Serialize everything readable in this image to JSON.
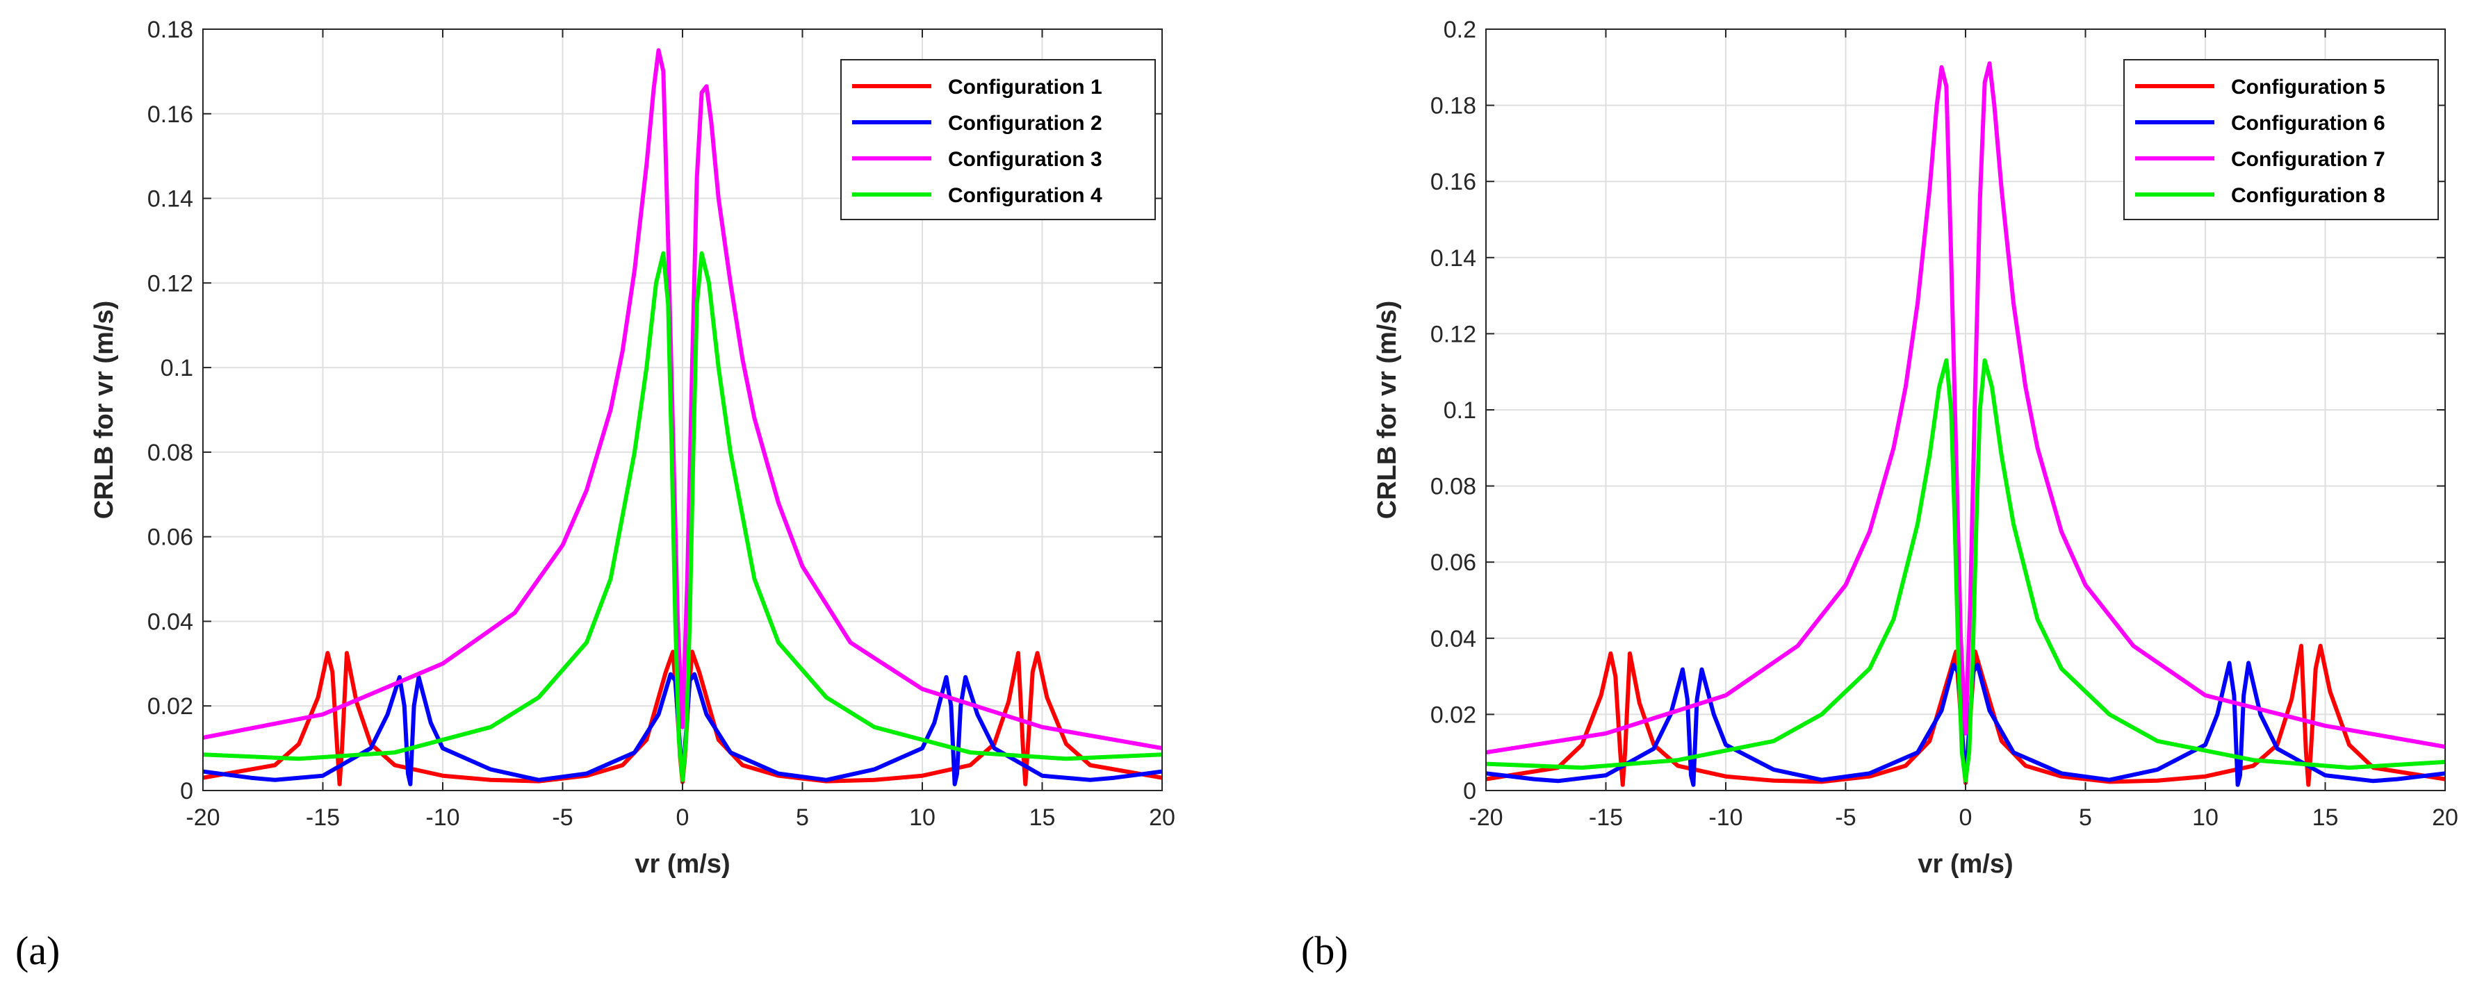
{
  "figure": {
    "panel_labels": [
      "(a)",
      "(b)"
    ]
  },
  "chart_data": [
    {
      "type": "line",
      "panel": "(a)",
      "title": "",
      "xlabel": "vr (m/s)",
      "ylabel": "CRLB for vr (m/s)",
      "xlim": [
        -20,
        20
      ],
      "ylim": [
        0,
        0.18
      ],
      "xticks": [
        -20,
        -15,
        -10,
        -5,
        0,
        5,
        10,
        15,
        20
      ],
      "yticks": [
        0,
        0.02,
        0.04,
        0.06,
        0.08,
        0.1,
        0.12,
        0.14,
        0.16,
        0.18
      ],
      "ytick_labels": [
        "0",
        "0.02",
        "0.04",
        "0.06",
        "0.08",
        "0.1",
        "0.12",
        "0.14",
        "0.16",
        "0.18"
      ],
      "grid": true,
      "legend_position": "top-right",
      "series": [
        {
          "name": "Configuration 1",
          "color": "#ff0000",
          "x": [
            -20,
            -17,
            -16,
            -15.2,
            -14.8,
            -14.6,
            -14.4,
            -14.3,
            -14.2,
            -14.0,
            -13.6,
            -13,
            -12,
            -10,
            -8,
            -6,
            -4,
            -2.5,
            -1.5,
            -0.7,
            -0.4,
            -0.25,
            -0.1,
            0,
            0.1,
            0.25,
            0.4,
            0.7,
            1.5,
            2.5,
            4,
            6,
            8,
            10,
            12,
            13,
            13.6,
            14.0,
            14.2,
            14.3,
            14.4,
            14.6,
            14.8,
            15.2,
            16,
            17,
            20
          ],
          "values": [
            0.003,
            0.006,
            0.011,
            0.022,
            0.0325,
            0.028,
            0.01,
            0.0015,
            0.01,
            0.0325,
            0.021,
            0.011,
            0.006,
            0.0035,
            0.0025,
            0.0022,
            0.0035,
            0.006,
            0.012,
            0.028,
            0.0328,
            0.022,
            0.008,
            0.002,
            0.008,
            0.022,
            0.0328,
            0.028,
            0.012,
            0.006,
            0.0035,
            0.0022,
            0.0025,
            0.0035,
            0.006,
            0.011,
            0.021,
            0.0325,
            0.01,
            0.0015,
            0.01,
            0.028,
            0.0325,
            0.022,
            0.011,
            0.006,
            0.003
          ]
        },
        {
          "name": "Configuration 2",
          "color": "#0000ff",
          "x": [
            -20,
            -18,
            -17,
            -15,
            -13,
            -12.3,
            -11.8,
            -11.6,
            -11.45,
            -11.35,
            -11.2,
            -11.0,
            -10.5,
            -10,
            -8,
            -6,
            -4,
            -2,
            -1,
            -0.5,
            -0.3,
            -0.1,
            0,
            0.1,
            0.3,
            0.5,
            1,
            2,
            4,
            6,
            8,
            10,
            10.5,
            11.0,
            11.2,
            11.35,
            11.45,
            11.6,
            11.8,
            12.3,
            13,
            15,
            17,
            18,
            20
          ],
          "values": [
            0.0045,
            0.003,
            0.0025,
            0.0035,
            0.01,
            0.018,
            0.0268,
            0.02,
            0.004,
            0.0015,
            0.02,
            0.0268,
            0.016,
            0.01,
            0.005,
            0.0025,
            0.004,
            0.009,
            0.018,
            0.0275,
            0.026,
            0.01,
            0.0035,
            0.01,
            0.026,
            0.0275,
            0.018,
            0.009,
            0.004,
            0.0025,
            0.005,
            0.01,
            0.016,
            0.0268,
            0.02,
            0.0015,
            0.004,
            0.02,
            0.0268,
            0.018,
            0.01,
            0.0035,
            0.0025,
            0.003,
            0.0045
          ]
        },
        {
          "name": "Configuration 3",
          "color": "#ff00ff",
          "x": [
            -20,
            -15,
            -10,
            -7,
            -5,
            -4,
            -3,
            -2.5,
            -2,
            -1.5,
            -1.2,
            -1.0,
            -0.8,
            -0.6,
            -0.4,
            -0.2,
            0,
            0.2,
            0.4,
            0.6,
            0.8,
            1.0,
            1.2,
            1.5,
            2,
            2.5,
            3,
            4,
            5,
            7,
            10,
            15,
            20
          ],
          "values": [
            0.0125,
            0.018,
            0.03,
            0.042,
            0.058,
            0.071,
            0.09,
            0.104,
            0.123,
            0.148,
            0.166,
            0.175,
            0.17,
            0.13,
            0.085,
            0.04,
            0.015,
            0.05,
            0.1,
            0.145,
            0.165,
            0.1665,
            0.158,
            0.14,
            0.12,
            0.102,
            0.088,
            0.068,
            0.053,
            0.035,
            0.024,
            0.015,
            0.01
          ]
        },
        {
          "name": "Configuration 4",
          "color": "#00ee00",
          "x": [
            -20,
            -16,
            -12,
            -8,
            -6,
            -4,
            -3,
            -2,
            -1.5,
            -1.1,
            -0.8,
            -0.6,
            -0.45,
            -0.3,
            -0.15,
            0,
            0.15,
            0.3,
            0.45,
            0.6,
            0.8,
            1.1,
            1.5,
            2,
            3,
            4,
            6,
            8,
            12,
            16,
            20
          ],
          "values": [
            0.0085,
            0.0075,
            0.009,
            0.015,
            0.022,
            0.035,
            0.05,
            0.08,
            0.1,
            0.12,
            0.127,
            0.115,
            0.08,
            0.04,
            0.012,
            0.0025,
            0.012,
            0.04,
            0.08,
            0.115,
            0.127,
            0.12,
            0.1,
            0.08,
            0.05,
            0.035,
            0.022,
            0.015,
            0.009,
            0.0075,
            0.0085
          ]
        }
      ]
    },
    {
      "type": "line",
      "panel": "(b)",
      "title": "",
      "xlabel": "vr (m/s)",
      "ylabel": "CRLB for vr (m/s)",
      "xlim": [
        -20,
        20
      ],
      "ylim": [
        0,
        0.2
      ],
      "xticks": [
        -20,
        -15,
        -10,
        -5,
        0,
        5,
        10,
        15,
        20
      ],
      "yticks": [
        0,
        0.02,
        0.04,
        0.06,
        0.08,
        0.1,
        0.12,
        0.14,
        0.16,
        0.18,
        0.2
      ],
      "ytick_labels": [
        "0",
        "0.02",
        "0.04",
        "0.06",
        "0.08",
        "0.1",
        "0.12",
        "0.14",
        "0.16",
        "0.18",
        "0.2"
      ],
      "grid": true,
      "legend_position": "top-right",
      "series": [
        {
          "name": "Configuration 5",
          "color": "#ff0000",
          "x": [
            -20,
            -17,
            -16,
            -15.2,
            -14.8,
            -14.6,
            -14.4,
            -14.3,
            -14.2,
            -14.0,
            -13.6,
            -13,
            -12,
            -10,
            -8,
            -6,
            -4,
            -2.5,
            -1.5,
            -0.7,
            -0.4,
            -0.25,
            -0.1,
            0,
            0.1,
            0.25,
            0.4,
            0.7,
            1.5,
            2.5,
            4,
            6,
            8,
            10,
            12,
            13,
            13.6,
            14.0,
            14.2,
            14.3,
            14.4,
            14.6,
            14.8,
            15.2,
            16,
            17,
            20
          ],
          "values": [
            0.003,
            0.006,
            0.012,
            0.025,
            0.036,
            0.03,
            0.01,
            0.0015,
            0.01,
            0.036,
            0.023,
            0.012,
            0.0065,
            0.0037,
            0.0026,
            0.0023,
            0.0037,
            0.0065,
            0.013,
            0.03,
            0.0365,
            0.024,
            0.009,
            0.002,
            0.009,
            0.024,
            0.0365,
            0.03,
            0.013,
            0.0065,
            0.0037,
            0.0023,
            0.0026,
            0.0037,
            0.0065,
            0.012,
            0.024,
            0.038,
            0.01,
            0.0015,
            0.01,
            0.032,
            0.038,
            0.026,
            0.012,
            0.006,
            0.003
          ]
        },
        {
          "name": "Configuration 6",
          "color": "#0000ff",
          "x": [
            -20,
            -18,
            -17,
            -15,
            -13,
            -12.3,
            -11.8,
            -11.6,
            -11.45,
            -11.35,
            -11.2,
            -11.0,
            -10.5,
            -10,
            -8,
            -6,
            -4,
            -2,
            -1,
            -0.5,
            -0.3,
            -0.1,
            0,
            0.1,
            0.3,
            0.5,
            1,
            2,
            4,
            6,
            8,
            10,
            10.5,
            11.0,
            11.2,
            11.35,
            11.45,
            11.6,
            11.8,
            12.3,
            13,
            15,
            17,
            18,
            20
          ],
          "values": [
            0.0045,
            0.003,
            0.0025,
            0.004,
            0.011,
            0.02,
            0.0318,
            0.024,
            0.004,
            0.0015,
            0.024,
            0.0318,
            0.02,
            0.012,
            0.0055,
            0.0028,
            0.0045,
            0.01,
            0.021,
            0.033,
            0.031,
            0.011,
            0.0035,
            0.011,
            0.031,
            0.033,
            0.021,
            0.01,
            0.0045,
            0.0028,
            0.0055,
            0.012,
            0.02,
            0.0335,
            0.025,
            0.0015,
            0.004,
            0.025,
            0.0335,
            0.02,
            0.011,
            0.004,
            0.0025,
            0.003,
            0.0045
          ]
        },
        {
          "name": "Configuration 7",
          "color": "#ff00ff",
          "x": [
            -20,
            -15,
            -10,
            -7,
            -5,
            -4,
            -3,
            -2.5,
            -2,
            -1.5,
            -1.2,
            -1.0,
            -0.8,
            -0.6,
            -0.4,
            -0.2,
            0,
            0.2,
            0.4,
            0.6,
            0.8,
            1.0,
            1.2,
            1.5,
            2,
            2.5,
            3,
            4,
            5,
            7,
            10,
            15,
            20
          ],
          "values": [
            0.01,
            0.015,
            0.025,
            0.038,
            0.054,
            0.068,
            0.09,
            0.106,
            0.128,
            0.158,
            0.18,
            0.19,
            0.185,
            0.14,
            0.09,
            0.04,
            0.015,
            0.05,
            0.105,
            0.155,
            0.186,
            0.191,
            0.18,
            0.158,
            0.128,
            0.106,
            0.09,
            0.068,
            0.054,
            0.038,
            0.025,
            0.017,
            0.0115
          ]
        },
        {
          "name": "Configuration 8",
          "color": "#00ee00",
          "x": [
            -20,
            -16,
            -12,
            -8,
            -6,
            -4,
            -3,
            -2,
            -1.5,
            -1.1,
            -0.8,
            -0.6,
            -0.45,
            -0.3,
            -0.15,
            0,
            0.15,
            0.3,
            0.45,
            0.6,
            0.8,
            1.1,
            1.5,
            2,
            3,
            4,
            6,
            8,
            12,
            16,
            20
          ],
          "values": [
            0.007,
            0.006,
            0.008,
            0.013,
            0.02,
            0.032,
            0.045,
            0.07,
            0.088,
            0.106,
            0.113,
            0.1,
            0.07,
            0.035,
            0.01,
            0.0025,
            0.01,
            0.035,
            0.07,
            0.1,
            0.113,
            0.106,
            0.088,
            0.07,
            0.045,
            0.032,
            0.02,
            0.013,
            0.008,
            0.006,
            0.0075
          ]
        }
      ]
    }
  ]
}
